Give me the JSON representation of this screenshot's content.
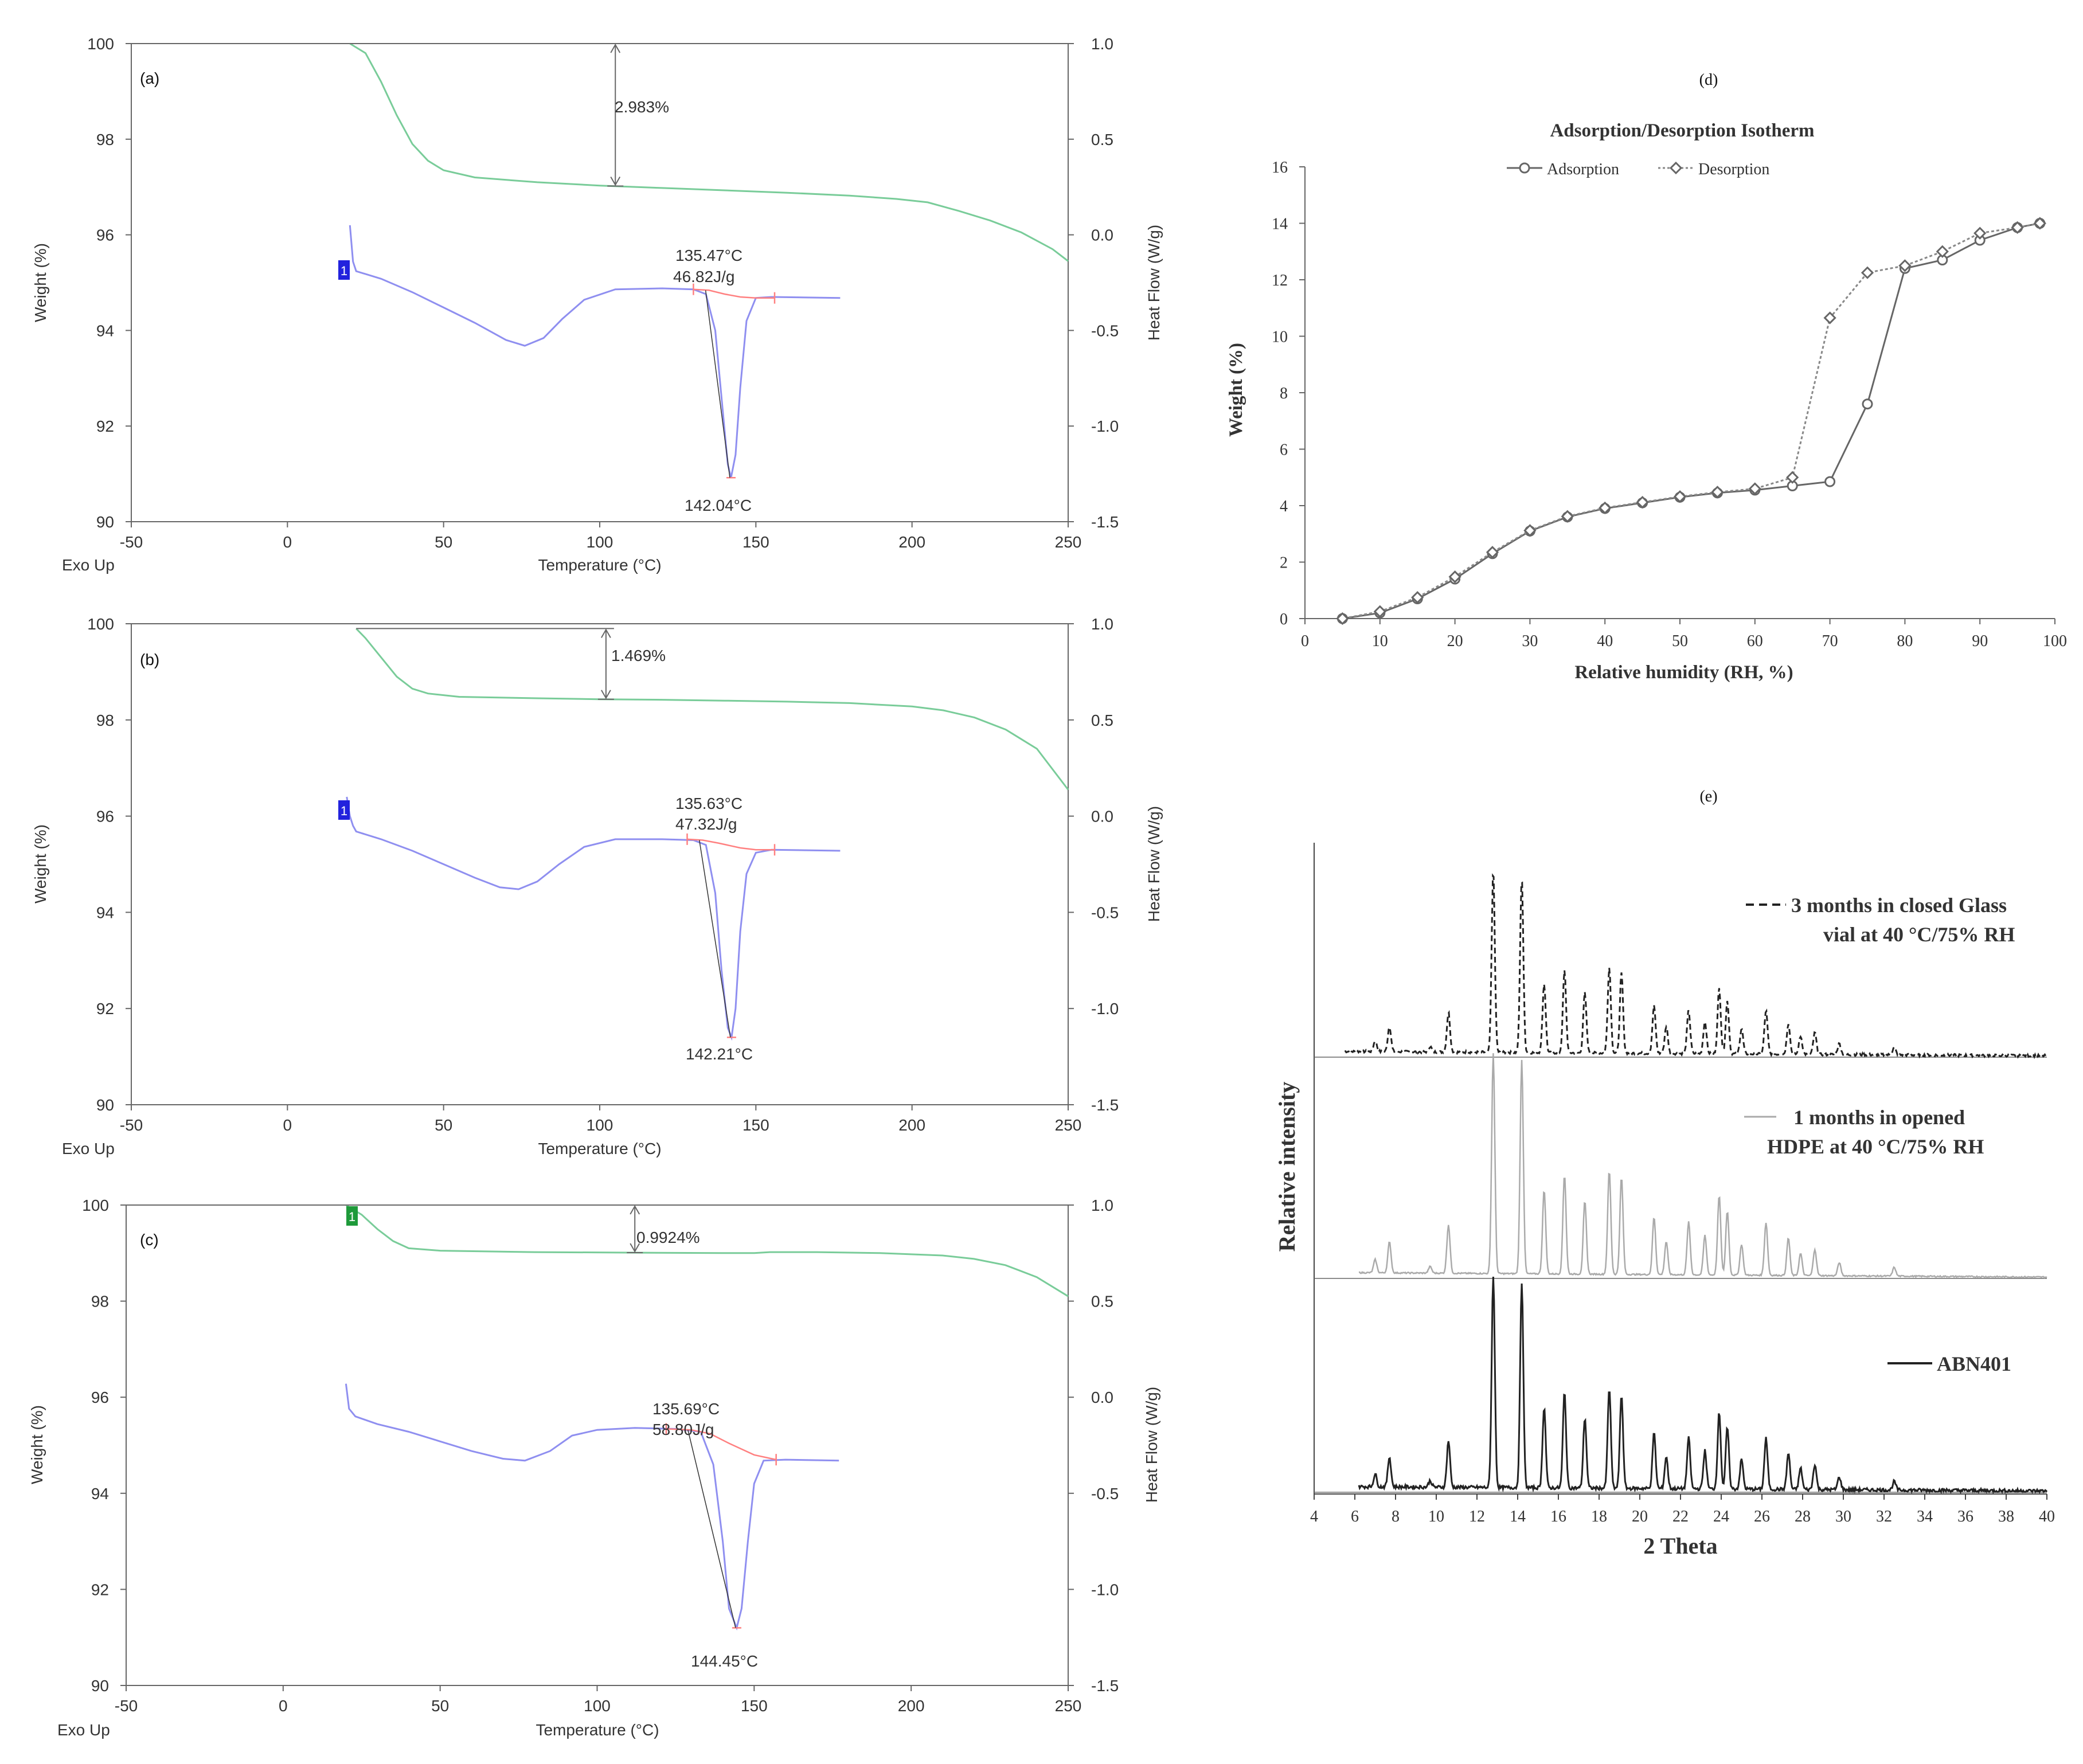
{
  "figure": {
    "panels": [
      "(a)",
      "(b)",
      "(c)",
      "(d)",
      "(e)"
    ]
  },
  "colors": {
    "tga": "#79cc99",
    "dsc": "#8f8ff0",
    "baseline": "#ff8080",
    "step_marker_blue": "#2222dd",
    "step_marker_green": "#1e9a3a",
    "axis": "#555555",
    "isotherm": "#666666",
    "xrd_dark": "#222222",
    "xrd_light": "#aaaaaa"
  },
  "chart_data": [
    {
      "id": "a",
      "type": "line",
      "title": "(a)",
      "xlabel": "Temperature (°C)",
      "ylabel": "Weight (%)",
      "y2label": "Heat Flow (W/g)",
      "corner_label": "Exo Up",
      "xlim": [
        -50,
        250
      ],
      "ylim": [
        90,
        100
      ],
      "y2lim": [
        -1.5,
        1.0
      ],
      "xticks": [
        -50,
        0,
        50,
        100,
        150,
        200,
        250
      ],
      "yticks": [
        90,
        92,
        94,
        96,
        98,
        100
      ],
      "y2ticks": [
        "-1.5",
        "-1.0",
        "-0.5",
        "0.0",
        "0.5",
        "1.0"
      ],
      "step_marker": "1",
      "weight_loss": {
        "label": "2.983%",
        "x": 105,
        "from": 100,
        "to": 97.02
      },
      "annotations": {
        "onset": "135.47°C",
        "enthalpy": "46.82J/g",
        "peak": "142.04°C"
      },
      "tga": [
        [
          20,
          100
        ],
        [
          25,
          99.8
        ],
        [
          30,
          99.2
        ],
        [
          35,
          98.5
        ],
        [
          40,
          97.9
        ],
        [
          45,
          97.55
        ],
        [
          50,
          97.35
        ],
        [
          60,
          97.2
        ],
        [
          80,
          97.1
        ],
        [
          100,
          97.03
        ],
        [
          120,
          96.98
        ],
        [
          140,
          96.93
        ],
        [
          160,
          96.88
        ],
        [
          180,
          96.82
        ],
        [
          195,
          96.75
        ],
        [
          205,
          96.68
        ],
        [
          215,
          96.5
        ],
        [
          225,
          96.3
        ],
        [
          235,
          96.05
        ],
        [
          245,
          95.7
        ],
        [
          250,
          95.45
        ]
      ],
      "dsc": [
        [
          20,
          0.05
        ],
        [
          21,
          -0.14
        ],
        [
          22,
          -0.19
        ],
        [
          30,
          -0.23
        ],
        [
          40,
          -0.3
        ],
        [
          50,
          -0.38
        ],
        [
          60,
          -0.46
        ],
        [
          70,
          -0.55
        ],
        [
          76,
          -0.58
        ],
        [
          82,
          -0.54
        ],
        [
          88,
          -0.44
        ],
        [
          95,
          -0.34
        ],
        [
          105,
          -0.285
        ],
        [
          120,
          -0.28
        ],
        [
          130,
          -0.285
        ],
        [
          134,
          -0.31
        ],
        [
          137,
          -0.5
        ],
        [
          139,
          -0.85
        ],
        [
          141,
          -1.2
        ],
        [
          142.04,
          -1.27
        ],
        [
          143.5,
          -1.15
        ],
        [
          145,
          -0.8
        ],
        [
          147,
          -0.45
        ],
        [
          150,
          -0.33
        ],
        [
          155,
          -0.325
        ],
        [
          177,
          -0.33
        ]
      ],
      "baseline": [
        [
          130,
          -0.285
        ],
        [
          135,
          -0.29
        ],
        [
          140,
          -0.31
        ],
        [
          145,
          -0.325
        ],
        [
          150,
          -0.33
        ],
        [
          156,
          -0.33
        ]
      ]
    },
    {
      "id": "b",
      "type": "line",
      "title": "(b)",
      "xlabel": "Temperature (°C)",
      "ylabel": "Weight (%)",
      "y2label": "Heat Flow (W/g)",
      "corner_label": "Exo Up",
      "xlim": [
        -50,
        250
      ],
      "ylim": [
        90,
        100
      ],
      "y2lim": [
        -1.5,
        1.0
      ],
      "xticks": [
        -50,
        0,
        50,
        100,
        150,
        200,
        250
      ],
      "yticks": [
        90,
        92,
        94,
        96,
        98,
        100
      ],
      "y2ticks": [
        "-1.5",
        "-1.0",
        "-0.5",
        "0.0",
        "0.5",
        "1.0"
      ],
      "step_marker": "1",
      "weight_loss": {
        "label": "1.469%",
        "x": 102,
        "from": 99.9,
        "to": 98.43
      },
      "annotations": {
        "onset": "135.63°C",
        "enthalpy": "47.32J/g",
        "peak": "142.21°C"
      },
      "tga": [
        [
          22,
          99.9
        ],
        [
          25,
          99.7
        ],
        [
          30,
          99.3
        ],
        [
          35,
          98.9
        ],
        [
          40,
          98.65
        ],
        [
          45,
          98.55
        ],
        [
          55,
          98.48
        ],
        [
          80,
          98.45
        ],
        [
          100,
          98.43
        ],
        [
          120,
          98.42
        ],
        [
          140,
          98.4
        ],
        [
          160,
          98.38
        ],
        [
          180,
          98.35
        ],
        [
          200,
          98.28
        ],
        [
          210,
          98.2
        ],
        [
          220,
          98.05
        ],
        [
          230,
          97.8
        ],
        [
          240,
          97.4
        ],
        [
          250,
          96.55
        ]
      ],
      "dsc": [
        [
          19,
          0.1
        ],
        [
          20,
          0.0
        ],
        [
          21,
          -0.05
        ],
        [
          22,
          -0.08
        ],
        [
          30,
          -0.12
        ],
        [
          40,
          -0.18
        ],
        [
          50,
          -0.25
        ],
        [
          60,
          -0.32
        ],
        [
          68,
          -0.37
        ],
        [
          74,
          -0.38
        ],
        [
          80,
          -0.34
        ],
        [
          87,
          -0.25
        ],
        [
          95,
          -0.16
        ],
        [
          105,
          -0.12
        ],
        [
          120,
          -0.12
        ],
        [
          130,
          -0.125
        ],
        [
          134,
          -0.15
        ],
        [
          137,
          -0.4
        ],
        [
          139,
          -0.8
        ],
        [
          141,
          -1.1
        ],
        [
          142.21,
          -1.15
        ],
        [
          143.5,
          -1.0
        ],
        [
          145,
          -0.6
        ],
        [
          147,
          -0.3
        ],
        [
          150,
          -0.19
        ],
        [
          155,
          -0.175
        ],
        [
          177,
          -0.18
        ]
      ],
      "baseline": [
        [
          128,
          -0.12
        ],
        [
          133,
          -0.125
        ],
        [
          138,
          -0.14
        ],
        [
          145,
          -0.165
        ],
        [
          150,
          -0.175
        ],
        [
          156,
          -0.175
        ]
      ]
    },
    {
      "id": "c",
      "type": "line",
      "title": "(c)",
      "xlabel": "Temperature (°C)",
      "ylabel": "Weight (%)",
      "y2label": "Heat Flow (W/g)",
      "corner_label": "Exo Up",
      "xlim": [
        -50,
        250
      ],
      "ylim": [
        90,
        100
      ],
      "y2lim": [
        -1.5,
        1.0
      ],
      "xticks": [
        -50,
        0,
        50,
        100,
        150,
        200,
        250
      ],
      "yticks": [
        90,
        92,
        94,
        96,
        98,
        100
      ],
      "y2ticks": [
        "-1.5",
        "-1.0",
        "-0.5",
        "0.0",
        "0.5",
        "1.0"
      ],
      "step_marker": "1",
      "weight_loss": {
        "label": "0.9924%",
        "x": 112,
        "from": 100,
        "to": 99.01
      },
      "annotations": {
        "onset": "135.69°C",
        "enthalpy": "58.80J/g",
        "peak": "144.45°C"
      },
      "tga": [
        [
          20,
          100
        ],
        [
          25,
          99.8
        ],
        [
          30,
          99.5
        ],
        [
          35,
          99.25
        ],
        [
          40,
          99.1
        ],
        [
          50,
          99.05
        ],
        [
          80,
          99.02
        ],
        [
          110,
          99.01
        ],
        [
          140,
          99.0
        ],
        [
          150,
          99.0
        ],
        [
          155,
          99.02
        ],
        [
          170,
          99.02
        ],
        [
          190,
          99.0
        ],
        [
          210,
          98.95
        ],
        [
          220,
          98.88
        ],
        [
          230,
          98.75
        ],
        [
          240,
          98.5
        ],
        [
          250,
          98.1
        ]
      ],
      "dsc": [
        [
          20,
          0.07
        ],
        [
          21,
          -0.06
        ],
        [
          23,
          -0.1
        ],
        [
          30,
          -0.14
        ],
        [
          40,
          -0.18
        ],
        [
          50,
          -0.23
        ],
        [
          60,
          -0.28
        ],
        [
          70,
          -0.32
        ],
        [
          77,
          -0.33
        ],
        [
          85,
          -0.28
        ],
        [
          92,
          -0.2
        ],
        [
          100,
          -0.17
        ],
        [
          112,
          -0.16
        ],
        [
          125,
          -0.165
        ],
        [
          133,
          -0.18
        ],
        [
          137,
          -0.35
        ],
        [
          140,
          -0.75
        ],
        [
          142,
          -1.1
        ],
        [
          144.45,
          -1.2
        ],
        [
          146,
          -1.1
        ],
        [
          148,
          -0.75
        ],
        [
          150,
          -0.45
        ],
        [
          153,
          -0.33
        ],
        [
          160,
          -0.325
        ],
        [
          177,
          -0.33
        ]
      ],
      "baseline": [
        [
          122,
          -0.165
        ],
        [
          130,
          -0.17
        ],
        [
          136,
          -0.19
        ],
        [
          142,
          -0.24
        ],
        [
          150,
          -0.3
        ],
        [
          157,
          -0.325
        ]
      ]
    },
    {
      "id": "d",
      "type": "line",
      "title": "Adsorption/Desorption Isotherm",
      "panel_letter": "(d)",
      "xlabel": "Relative humidity (RH, %)",
      "ylabel": "Weight (%)",
      "xlim": [
        0,
        100
      ],
      "ylim": [
        0,
        16
      ],
      "xticks": [
        0,
        10,
        20,
        30,
        40,
        50,
        60,
        70,
        80,
        90,
        100
      ],
      "yticks": [
        0,
        2,
        4,
        6,
        8,
        10,
        12,
        14,
        16
      ],
      "legend": "top-center",
      "series": [
        {
          "name": "Adsorption",
          "marker": "circle",
          "points": [
            [
              5,
              0.0
            ],
            [
              10,
              0.2
            ],
            [
              15,
              0.7
            ],
            [
              20,
              1.4
            ],
            [
              25,
              2.3
            ],
            [
              30,
              3.1
            ],
            [
              35,
              3.6
            ],
            [
              40,
              3.9
            ],
            [
              45,
              4.1
            ],
            [
              50,
              4.3
            ],
            [
              55,
              4.45
            ],
            [
              60,
              4.55
            ],
            [
              65,
              4.7
            ],
            [
              70,
              4.85
            ],
            [
              75,
              7.6
            ],
            [
              80,
              12.4
            ],
            [
              85,
              12.7
            ],
            [
              90,
              13.4
            ],
            [
              95,
              13.85
            ],
            [
              98,
              14.0
            ]
          ]
        },
        {
          "name": "Desorption",
          "marker": "diamond",
          "points": [
            [
              98,
              14.0
            ],
            [
              95,
              13.85
            ],
            [
              90,
              13.65
            ],
            [
              85,
              13.0
            ],
            [
              80,
              12.5
            ],
            [
              75,
              12.25
            ],
            [
              70,
              10.65
            ],
            [
              65,
              5.0
            ],
            [
              60,
              4.6
            ],
            [
              55,
              4.48
            ],
            [
              50,
              4.32
            ],
            [
              45,
              4.12
            ],
            [
              40,
              3.92
            ],
            [
              35,
              3.62
            ],
            [
              30,
              3.12
            ],
            [
              25,
              2.35
            ],
            [
              20,
              1.48
            ],
            [
              15,
              0.75
            ],
            [
              10,
              0.25
            ],
            [
              5,
              0.0
            ]
          ]
        }
      ]
    },
    {
      "id": "e",
      "type": "line",
      "title": "",
      "panel_letter": "(e)",
      "xlabel": "2 Theta",
      "ylabel": "Relative intensity",
      "xlim": [
        4,
        40
      ],
      "xticks": [
        4,
        6,
        8,
        10,
        12,
        14,
        16,
        18,
        20,
        22,
        24,
        26,
        28,
        30,
        32,
        34,
        36,
        38,
        40
      ],
      "peaks": [
        [
          7.0,
          0.06
        ],
        [
          7.7,
          0.14
        ],
        [
          9.7,
          0.03
        ],
        [
          10.6,
          0.22
        ],
        [
          12.8,
          1.0
        ],
        [
          14.2,
          0.97
        ],
        [
          15.3,
          0.38
        ],
        [
          16.3,
          0.45
        ],
        [
          17.3,
          0.33
        ],
        [
          18.5,
          0.47
        ],
        [
          19.1,
          0.44
        ],
        [
          20.7,
          0.26
        ],
        [
          21.3,
          0.15
        ],
        [
          22.4,
          0.24
        ],
        [
          23.2,
          0.18
        ],
        [
          23.9,
          0.36
        ],
        [
          24.3,
          0.29
        ],
        [
          25.0,
          0.14
        ],
        [
          26.2,
          0.24
        ],
        [
          27.3,
          0.17
        ],
        [
          27.9,
          0.1
        ],
        [
          28.6,
          0.12
        ],
        [
          29.8,
          0.06
        ],
        [
          32.5,
          0.04
        ]
      ],
      "series": [
        {
          "name": "3 months in closed Glass",
          "name_line2": "vial at 40 °C/75% RH",
          "style": "dashed",
          "scale": 0.85,
          "noise": 0.012
        },
        {
          "name": "1 months in opened",
          "name_line2": "HDPE at 40 °C/75% RH",
          "style": "light",
          "scale": 1.0,
          "noise": 0.006
        },
        {
          "name": "ABN401",
          "style": "solid",
          "scale": 1.0,
          "noise": 0.016
        }
      ]
    }
  ]
}
